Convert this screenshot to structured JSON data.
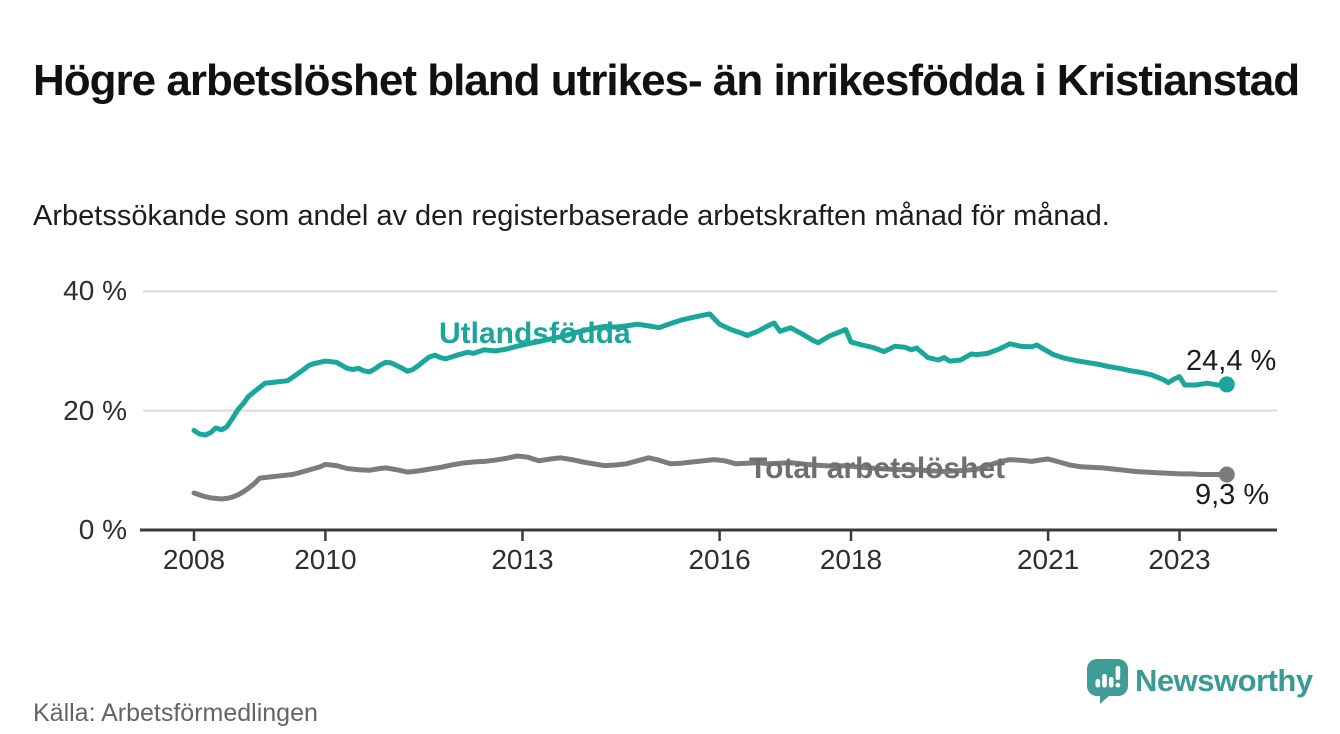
{
  "header": {
    "title": "Högre arbetslöshet bland utrikes- än inrikesfödda i Kristianstad",
    "subtitle": "Arbetssökande som andel av den registerbaserade arbetskraften månad för månad."
  },
  "footer": {
    "source": "Källa: Arbetsförmedlingen",
    "logo_text": "Newsworthy",
    "logo_icon": "newsworthy-speech-bubble-bar-chart-icon"
  },
  "colors": {
    "foreign_born_line": "#1aa69a",
    "total_line": "#7c7c7c",
    "gridline": "#d9d9d9",
    "axis": "#3a3a3a",
    "logo_teal": "#3a9a94"
  },
  "chart_data": {
    "type": "line",
    "title": "Högre arbetslöshet bland utrikes- än inrikesfödda i Kristianstad",
    "subtitle": "Arbetssökande som andel av den registerbaserade arbetskraften månad för månad.",
    "unit": "% av registerbaserad arbetskraft",
    "grid": "horizontal-only",
    "x_axis": {
      "ticks": [
        {
          "value": 2008,
          "label": "2008"
        },
        {
          "value": 2010,
          "label": "2010"
        },
        {
          "value": 2013,
          "label": "2013"
        },
        {
          "value": 2016,
          "label": "2016"
        },
        {
          "value": 2018,
          "label": "2018"
        },
        {
          "value": 2021,
          "label": "2021"
        },
        {
          "value": 2023,
          "label": "2023"
        }
      ],
      "range": [
        2007.2,
        2024.5
      ]
    },
    "y_axis": {
      "ticks": [
        {
          "value": 0,
          "label": "0 %"
        },
        {
          "value": 20,
          "label": "20 %"
        },
        {
          "value": 40,
          "label": "40 %"
        }
      ],
      "range": [
        0,
        40
      ]
    },
    "series": [
      {
        "name": "Utlandsfödda",
        "label": "Utlandsfödda",
        "color": "#1aa69a",
        "end_label": "24,4 %",
        "end_value": 24.4,
        "points": [
          [
            2008.0,
            16.7
          ],
          [
            2008.08,
            16.1
          ],
          [
            2008.17,
            15.9
          ],
          [
            2008.25,
            16.3
          ],
          [
            2008.33,
            17.1
          ],
          [
            2008.42,
            16.8
          ],
          [
            2008.5,
            17.3
          ],
          [
            2008.58,
            18.6
          ],
          [
            2008.67,
            20.2
          ],
          [
            2008.75,
            21.2
          ],
          [
            2008.83,
            22.4
          ],
          [
            2008.92,
            23.2
          ],
          [
            2009.0,
            23.9
          ],
          [
            2009.08,
            24.6
          ],
          [
            2009.17,
            24.7
          ],
          [
            2009.25,
            24.8
          ],
          [
            2009.33,
            24.9
          ],
          [
            2009.42,
            25.0
          ],
          [
            2009.5,
            25.6
          ],
          [
            2009.58,
            26.2
          ],
          [
            2009.67,
            26.9
          ],
          [
            2009.75,
            27.6
          ],
          [
            2009.83,
            27.9
          ],
          [
            2009.92,
            28.1
          ],
          [
            2010.0,
            28.3
          ],
          [
            2010.17,
            28.1
          ],
          [
            2010.33,
            27.1
          ],
          [
            2010.42,
            26.9
          ],
          [
            2010.5,
            27.1
          ],
          [
            2010.58,
            26.7
          ],
          [
            2010.67,
            26.5
          ],
          [
            2010.75,
            27.0
          ],
          [
            2010.83,
            27.6
          ],
          [
            2010.92,
            28.1
          ],
          [
            2011.0,
            28.0
          ],
          [
            2011.17,
            27.1
          ],
          [
            2011.25,
            26.6
          ],
          [
            2011.33,
            26.9
          ],
          [
            2011.42,
            27.6
          ],
          [
            2011.5,
            28.3
          ],
          [
            2011.58,
            29.0
          ],
          [
            2011.67,
            29.3
          ],
          [
            2011.75,
            28.9
          ],
          [
            2011.83,
            28.7
          ],
          [
            2011.92,
            29.0
          ],
          [
            2012.0,
            29.3
          ],
          [
            2012.17,
            29.8
          ],
          [
            2012.25,
            29.6
          ],
          [
            2012.42,
            30.2
          ],
          [
            2012.58,
            30.0
          ],
          [
            2012.75,
            30.3
          ],
          [
            2012.92,
            30.8
          ],
          [
            2013.08,
            31.2
          ],
          [
            2013.25,
            31.6
          ],
          [
            2013.42,
            32.0
          ],
          [
            2013.58,
            32.4
          ],
          [
            2013.75,
            32.9
          ],
          [
            2013.92,
            33.4
          ],
          [
            2014.08,
            33.8
          ],
          [
            2014.25,
            34.1
          ],
          [
            2014.42,
            34.0
          ],
          [
            2014.58,
            34.2
          ],
          [
            2014.75,
            34.5
          ],
          [
            2014.92,
            34.2
          ],
          [
            2015.08,
            33.9
          ],
          [
            2015.25,
            34.6
          ],
          [
            2015.42,
            35.2
          ],
          [
            2015.58,
            35.6
          ],
          [
            2015.75,
            36.0
          ],
          [
            2015.85,
            36.2
          ],
          [
            2016.0,
            34.5
          ],
          [
            2016.17,
            33.6
          ],
          [
            2016.33,
            33.0
          ],
          [
            2016.42,
            32.6
          ],
          [
            2016.58,
            33.3
          ],
          [
            2016.75,
            34.3
          ],
          [
            2016.83,
            34.7
          ],
          [
            2016.92,
            33.3
          ],
          [
            2017.08,
            33.9
          ],
          [
            2017.25,
            32.9
          ],
          [
            2017.42,
            31.8
          ],
          [
            2017.5,
            31.4
          ],
          [
            2017.67,
            32.5
          ],
          [
            2017.83,
            33.2
          ],
          [
            2017.92,
            33.6
          ],
          [
            2018.0,
            31.5
          ],
          [
            2018.17,
            31.0
          ],
          [
            2018.33,
            30.6
          ],
          [
            2018.5,
            29.9
          ],
          [
            2018.58,
            30.3
          ],
          [
            2018.67,
            30.8
          ],
          [
            2018.83,
            30.6
          ],
          [
            2018.92,
            30.2
          ],
          [
            2019.0,
            30.5
          ],
          [
            2019.17,
            28.9
          ],
          [
            2019.33,
            28.5
          ],
          [
            2019.42,
            28.9
          ],
          [
            2019.5,
            28.3
          ],
          [
            2019.67,
            28.5
          ],
          [
            2019.83,
            29.5
          ],
          [
            2019.92,
            29.4
          ],
          [
            2020.08,
            29.6
          ],
          [
            2020.25,
            30.3
          ],
          [
            2020.42,
            31.2
          ],
          [
            2020.58,
            30.8
          ],
          [
            2020.75,
            30.7
          ],
          [
            2020.83,
            31.0
          ],
          [
            2020.92,
            30.4
          ],
          [
            2021.08,
            29.4
          ],
          [
            2021.25,
            28.8
          ],
          [
            2021.42,
            28.4
          ],
          [
            2021.58,
            28.1
          ],
          [
            2021.75,
            27.8
          ],
          [
            2021.92,
            27.4
          ],
          [
            2022.08,
            27.1
          ],
          [
            2022.25,
            26.7
          ],
          [
            2022.42,
            26.4
          ],
          [
            2022.58,
            26.0
          ],
          [
            2022.75,
            25.2
          ],
          [
            2022.83,
            24.7
          ],
          [
            2022.92,
            25.3
          ],
          [
            2023.0,
            25.7
          ],
          [
            2023.08,
            24.3
          ],
          [
            2023.25,
            24.3
          ],
          [
            2023.42,
            24.6
          ],
          [
            2023.58,
            24.3
          ],
          [
            2023.72,
            24.4
          ]
        ]
      },
      {
        "name": "Total arbetslöshet",
        "label": "Total arbetslöshet",
        "color": "#7c7c7c",
        "end_label": "9,3 %",
        "end_value": 9.3,
        "points": [
          [
            2008.0,
            6.2
          ],
          [
            2008.08,
            5.9
          ],
          [
            2008.17,
            5.6
          ],
          [
            2008.25,
            5.4
          ],
          [
            2008.33,
            5.3
          ],
          [
            2008.42,
            5.2
          ],
          [
            2008.5,
            5.3
          ],
          [
            2008.58,
            5.5
          ],
          [
            2008.67,
            5.9
          ],
          [
            2008.75,
            6.4
          ],
          [
            2008.83,
            7.0
          ],
          [
            2008.92,
            7.8
          ],
          [
            2009.0,
            8.7
          ],
          [
            2009.17,
            8.9
          ],
          [
            2009.33,
            9.1
          ],
          [
            2009.5,
            9.3
          ],
          [
            2009.67,
            9.8
          ],
          [
            2009.83,
            10.3
          ],
          [
            2009.92,
            10.6
          ],
          [
            2010.0,
            11.0
          ],
          [
            2010.17,
            10.8
          ],
          [
            2010.33,
            10.3
          ],
          [
            2010.5,
            10.1
          ],
          [
            2010.67,
            10.0
          ],
          [
            2010.83,
            10.3
          ],
          [
            2010.92,
            10.4
          ],
          [
            2011.08,
            10.1
          ],
          [
            2011.25,
            9.7
          ],
          [
            2011.42,
            9.9
          ],
          [
            2011.58,
            10.2
          ],
          [
            2011.75,
            10.5
          ],
          [
            2011.92,
            10.9
          ],
          [
            2012.08,
            11.2
          ],
          [
            2012.25,
            11.4
          ],
          [
            2012.42,
            11.5
          ],
          [
            2012.58,
            11.7
          ],
          [
            2012.75,
            12.0
          ],
          [
            2012.92,
            12.4
          ],
          [
            2013.08,
            12.2
          ],
          [
            2013.25,
            11.6
          ],
          [
            2013.42,
            11.9
          ],
          [
            2013.58,
            12.1
          ],
          [
            2013.75,
            11.8
          ],
          [
            2013.92,
            11.4
          ],
          [
            2014.08,
            11.1
          ],
          [
            2014.25,
            10.8
          ],
          [
            2014.42,
            10.9
          ],
          [
            2014.58,
            11.1
          ],
          [
            2014.75,
            11.6
          ],
          [
            2014.92,
            12.1
          ],
          [
            2015.08,
            11.7
          ],
          [
            2015.25,
            11.1
          ],
          [
            2015.42,
            11.2
          ],
          [
            2015.58,
            11.4
          ],
          [
            2015.75,
            11.6
          ],
          [
            2015.92,
            11.8
          ],
          [
            2016.08,
            11.6
          ],
          [
            2016.25,
            11.1
          ],
          [
            2016.42,
            11.2
          ],
          [
            2016.58,
            11.3
          ],
          [
            2016.75,
            11.1
          ],
          [
            2016.92,
            11.2
          ],
          [
            2017.08,
            11.3
          ],
          [
            2017.25,
            11.1
          ],
          [
            2017.42,
            10.9
          ],
          [
            2017.58,
            10.8
          ],
          [
            2017.75,
            10.7
          ],
          [
            2017.92,
            10.8
          ],
          [
            2018.08,
            10.6
          ],
          [
            2018.25,
            10.4
          ],
          [
            2018.42,
            10.3
          ],
          [
            2018.58,
            10.2
          ],
          [
            2018.75,
            10.1
          ],
          [
            2018.92,
            10.2
          ],
          [
            2019.08,
            10.0
          ],
          [
            2019.25,
            9.9
          ],
          [
            2019.42,
            9.8
          ],
          [
            2019.58,
            9.9
          ],
          [
            2019.75,
            10.0
          ],
          [
            2019.92,
            10.2
          ],
          [
            2020.08,
            10.8
          ],
          [
            2020.25,
            11.4
          ],
          [
            2020.42,
            11.8
          ],
          [
            2020.58,
            11.7
          ],
          [
            2020.75,
            11.5
          ],
          [
            2020.92,
            11.8
          ],
          [
            2021.0,
            11.9
          ],
          [
            2021.17,
            11.4
          ],
          [
            2021.33,
            10.9
          ],
          [
            2021.5,
            10.6
          ],
          [
            2021.67,
            10.5
          ],
          [
            2021.83,
            10.4
          ],
          [
            2022.0,
            10.2
          ],
          [
            2022.17,
            10.0
          ],
          [
            2022.33,
            9.8
          ],
          [
            2022.5,
            9.7
          ],
          [
            2022.67,
            9.6
          ],
          [
            2022.83,
            9.5
          ],
          [
            2023.0,
            9.4
          ],
          [
            2023.17,
            9.4
          ],
          [
            2023.33,
            9.3
          ],
          [
            2023.5,
            9.3
          ],
          [
            2023.72,
            9.3
          ]
        ]
      }
    ]
  }
}
